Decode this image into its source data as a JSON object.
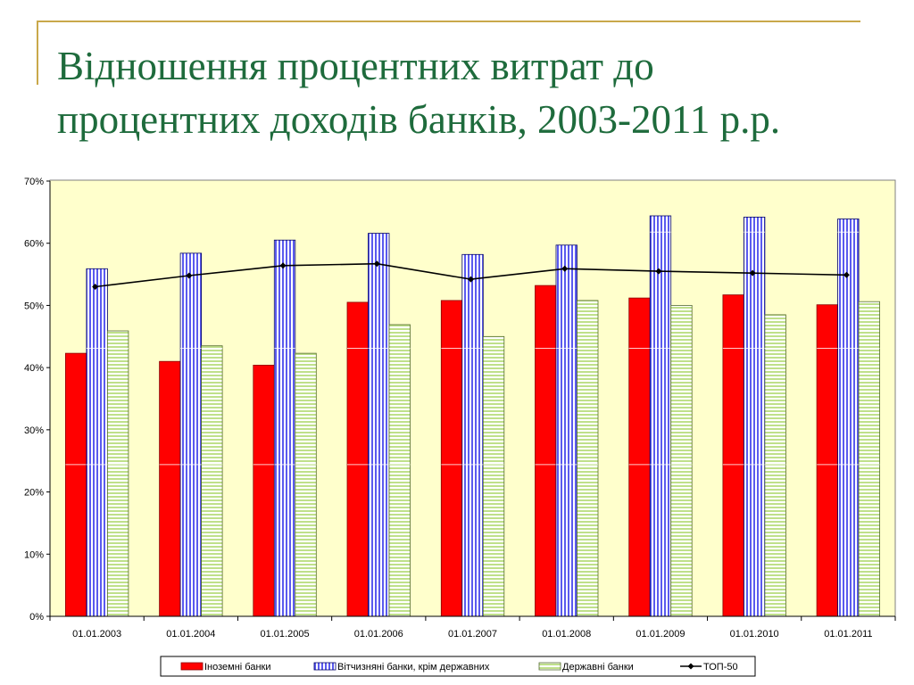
{
  "slide": {
    "title_line1": "Відношення процентних витрат до",
    "title_line2": "процентних доходів банків, 2003-2011 р.р."
  },
  "colors": {
    "frame": "#c9a84a",
    "title": "#1e6b3c",
    "plot_bg": "#ffffcc",
    "foreign": "#ff0000",
    "domestic": "#6666ff",
    "state": "#ccee99",
    "top50": "#000000"
  },
  "chart_data": {
    "type": "bar",
    "categories": [
      "01.01.2003",
      "01.01.2004",
      "01.01.2005",
      "01.01.2006",
      "01.01.2007",
      "01.01.2008",
      "01.01.2009",
      "01.01.2010",
      "01.01.2011"
    ],
    "series": [
      {
        "name": "Іноземні банки",
        "kind": "bar",
        "values": [
          42.3,
          41.0,
          40.4,
          50.5,
          50.8,
          53.2,
          51.2,
          51.7,
          50.1
        ]
      },
      {
        "name": "Вітчизняні банки, крім державних",
        "kind": "bar",
        "values": [
          55.9,
          58.4,
          60.5,
          61.6,
          58.2,
          59.7,
          64.4,
          64.2,
          63.9
        ]
      },
      {
        "name": "Державні банки",
        "kind": "bar",
        "values": [
          45.9,
          43.5,
          42.3,
          46.9,
          45.0,
          50.8,
          50.0,
          48.5,
          50.6
        ]
      },
      {
        "name": "ТОП-50",
        "kind": "line",
        "values": [
          53.0,
          54.8,
          56.4,
          56.7,
          54.2,
          55.9,
          55.5,
          55.2,
          54.9
        ]
      }
    ],
    "y_ticks": [
      "0%",
      "10%",
      "20%",
      "30%",
      "40%",
      "50%",
      "60%",
      "70%"
    ],
    "ylim": [
      0,
      70
    ],
    "y_unit": "%",
    "gridlines": false,
    "legend_position": "bottom"
  }
}
